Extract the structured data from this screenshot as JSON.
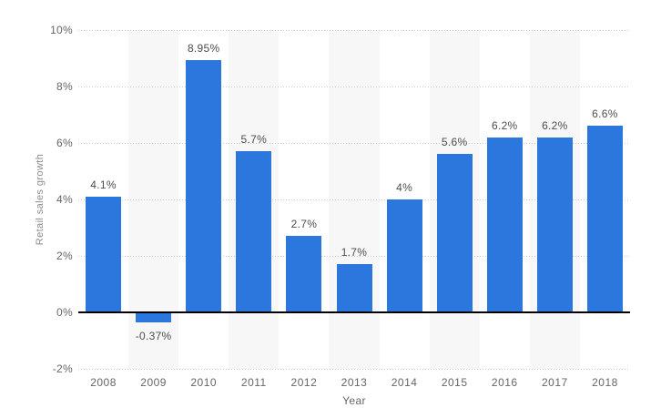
{
  "chart_data": {
    "type": "bar",
    "title": "",
    "xlabel": "Year",
    "ylabel": "Retail sales growth",
    "categories": [
      "2008",
      "2009",
      "2010",
      "2011",
      "2012",
      "2013",
      "2014",
      "2015",
      "2016",
      "2017",
      "2018"
    ],
    "values": [
      4.1,
      -0.37,
      8.95,
      5.7,
      2.7,
      1.7,
      4,
      5.6,
      6.2,
      6.2,
      6.6
    ],
    "value_labels": [
      "4.1%",
      "-0.37%",
      "8.95%",
      "5.7%",
      "2.7%",
      "1.7%",
      "4%",
      "5.6%",
      "6.2%",
      "6.2%",
      "6.6%"
    ],
    "ylim": [
      -2,
      10
    ],
    "yticks": [
      {
        "value": 10,
        "label": "10%"
      },
      {
        "value": 8,
        "label": "8%"
      },
      {
        "value": 6,
        "label": "6%"
      },
      {
        "value": 4,
        "label": "4%"
      },
      {
        "value": 2,
        "label": "2%"
      },
      {
        "value": 0,
        "label": "0%"
      },
      {
        "value": -2,
        "label": "-2%"
      }
    ],
    "grid": "horizontal-dotted",
    "legend": "none",
    "alternating_band_columns": [
      1,
      3,
      5,
      7,
      9
    ],
    "colors": {
      "bar": "#2b77dd",
      "band": "#f7f7f7",
      "gridline": "#cccccc",
      "zero_line": "#000000",
      "tick_text": "#666666",
      "value_text": "#4d4d4d",
      "axis_title_text": "#8c8c8c"
    }
  }
}
